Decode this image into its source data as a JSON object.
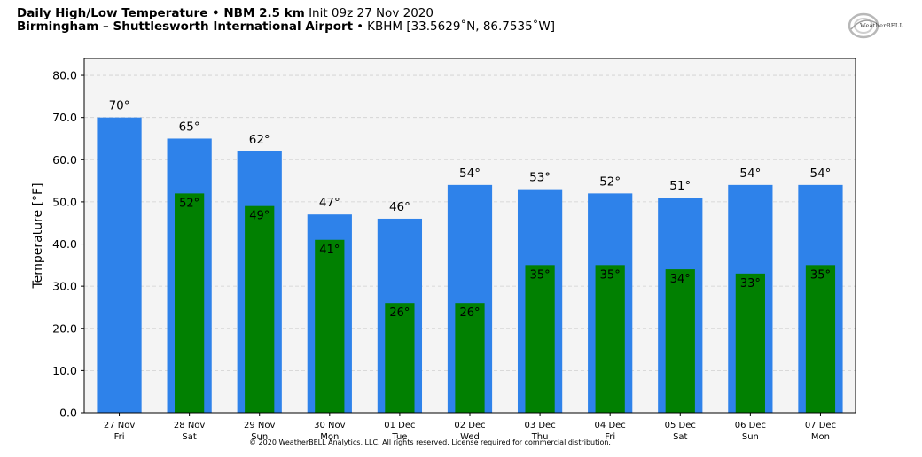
{
  "header": {
    "title_bold": "Daily High/Low Temperature • NBM 2.5 km",
    "init": "Init 09z 27 Nov 2020",
    "station_bold": "Birmingham – Shuttlesworth International Airport",
    "station_info": "KBHM [33.5629˚N, 86.7535˚W]"
  },
  "logo": {
    "text": "WeatherBELL",
    "icon": "weatherbell-swirl-logo"
  },
  "footer": {
    "copyright": "© 2020 WeatherBELL Analytics, LLC. All rights reserved. License required for commercial distribution."
  },
  "colors": {
    "high": "#2e82ea",
    "low": "#018001",
    "plot_bg": "#f4f4f4",
    "grid": "#d0d0d0"
  },
  "chart_data": {
    "type": "bar",
    "ylabel": "Temperature [°F]",
    "ylim": [
      0,
      84
    ],
    "yticks": [
      "0.0",
      "10.0",
      "20.0",
      "30.0",
      "40.0",
      "50.0",
      "60.0",
      "70.0",
      "80.0"
    ],
    "grid": true,
    "categories": [
      [
        "27 Nov",
        "Fri"
      ],
      [
        "28 Nov",
        "Sat"
      ],
      [
        "29 Nov",
        "Sun"
      ],
      [
        "30 Nov",
        "Mon"
      ],
      [
        "01 Dec",
        "Tue"
      ],
      [
        "02 Dec",
        "Wed"
      ],
      [
        "03 Dec",
        "Thu"
      ],
      [
        "04 Dec",
        "Fri"
      ],
      [
        "05 Dec",
        "Sat"
      ],
      [
        "06 Dec",
        "Sun"
      ],
      [
        "07 Dec",
        "Mon"
      ]
    ],
    "series": [
      {
        "key": "high",
        "values": [
          70,
          65,
          62,
          47,
          46,
          54,
          53,
          52,
          51,
          54,
          54
        ],
        "labels": [
          "70°",
          "65°",
          "62°",
          "47°",
          "46°",
          "54°",
          "53°",
          "52°",
          "51°",
          "54°",
          "54°"
        ]
      },
      {
        "key": "low",
        "values": [
          null,
          52,
          49,
          41,
          26,
          26,
          35,
          35,
          34,
          33,
          35
        ],
        "labels": [
          "",
          "52°",
          "49°",
          "41°",
          "26°",
          "26°",
          "35°",
          "35°",
          "34°",
          "33°",
          "35°"
        ]
      }
    ]
  }
}
